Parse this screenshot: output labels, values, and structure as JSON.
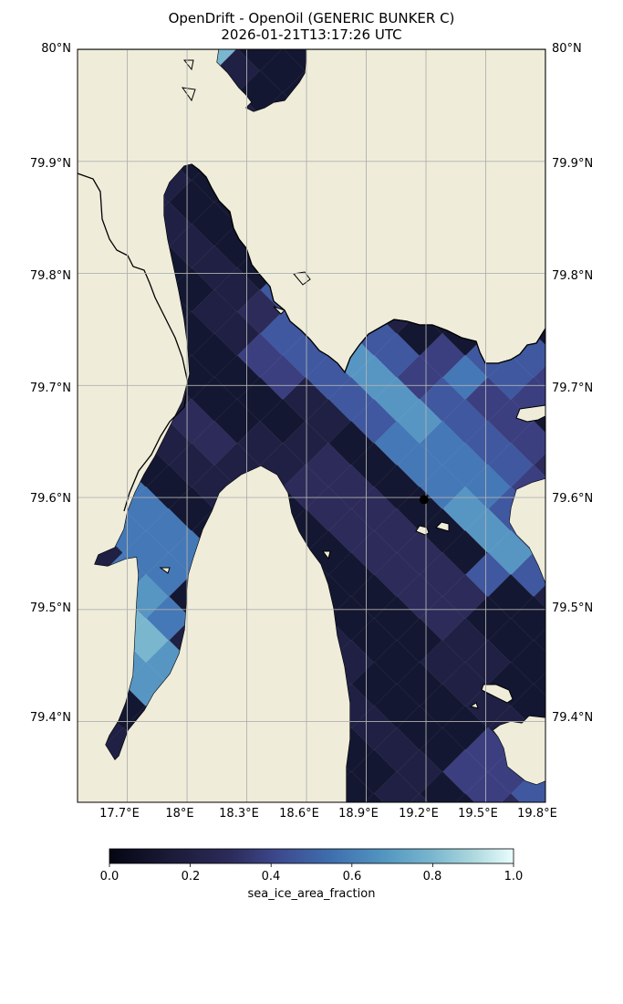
{
  "title": "OpenDrift - OpenOil (GENERIC BUNKER C)",
  "timestamp": "2026-01-21T13:17:26 UTC",
  "map": {
    "lat_labels": [
      "80°N",
      "79.9°N",
      "79.8°N",
      "79.7°N",
      "79.6°N",
      "79.5°N",
      "79.4°N"
    ],
    "lon_labels": [
      "17.7°E",
      "18°E",
      "18.3°E",
      "18.6°E",
      "18.9°E",
      "19.2°E",
      "19.5°E",
      "19.8°E"
    ],
    "lon_range": [
      17.45,
      19.8
    ],
    "lat_range": [
      79.328,
      80.0
    ],
    "gridlines": true,
    "colors": {
      "land": "#efedda",
      "coast": "#000000",
      "grid": "#b0b0b0",
      "particle": "#000000",
      "nodata": "#ffffff"
    },
    "particle": {
      "lon": 19.19,
      "lat": 79.598
    }
  },
  "colorbar": {
    "label": "sea_ice_area_fraction",
    "ticks": [
      "0.0",
      "0.2",
      "0.4",
      "0.6",
      "0.8",
      "1.0"
    ],
    "range": [
      0,
      1
    ],
    "colormap": "ice"
  }
}
